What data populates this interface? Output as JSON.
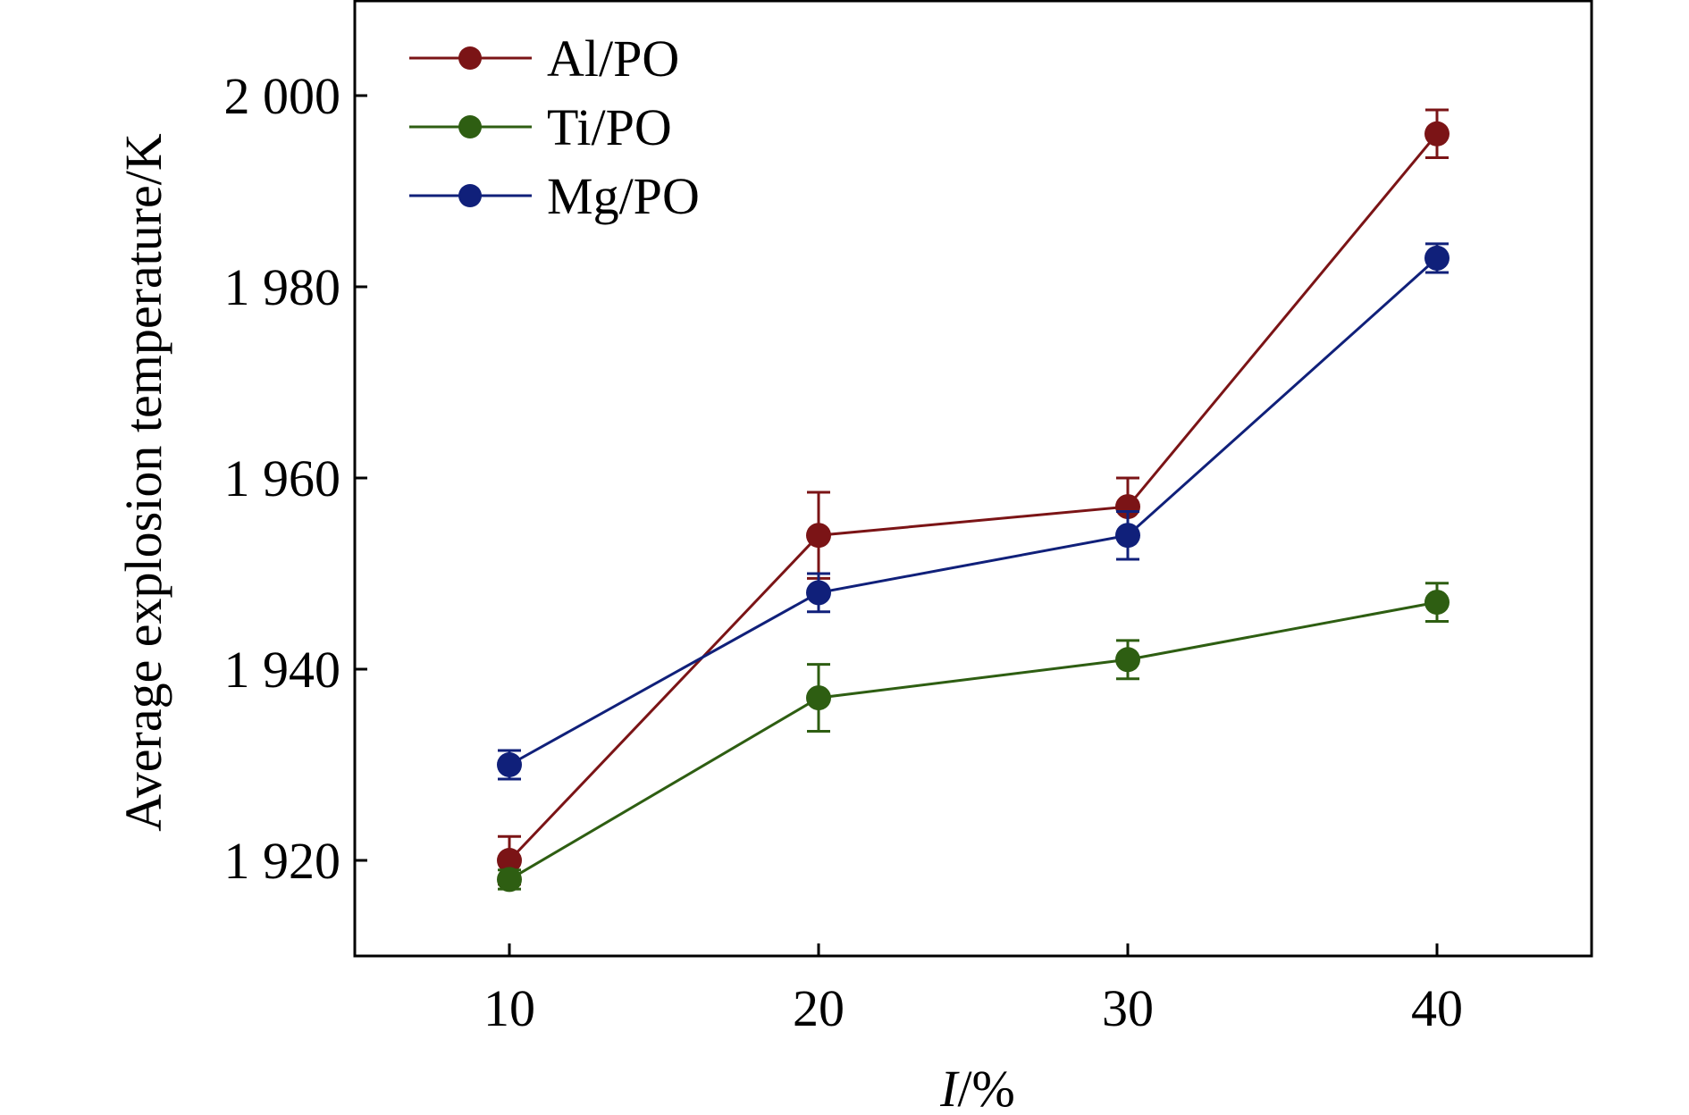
{
  "chart_data": {
    "type": "line",
    "title": "",
    "xlabel_italic": "I",
    "xlabel_rest": "/%",
    "ylabel": "Average explosion temperature/K",
    "x": [
      10,
      20,
      30,
      40
    ],
    "xlim": [
      5,
      45
    ],
    "ylim": [
      1910,
      2010
    ],
    "xticks": [
      10,
      20,
      30,
      40
    ],
    "xtick_labels": [
      "10",
      "20",
      "30",
      "40"
    ],
    "yticks": [
      1920,
      1940,
      1960,
      1980,
      2000
    ],
    "ytick_labels": [
      "1 920",
      "1 940",
      "1 960",
      "1 980",
      "2 000"
    ],
    "grid": false,
    "legend_position": "top-left",
    "series": [
      {
        "name": "Al/PO",
        "color": "#7b1416",
        "values": [
          1920,
          1954,
          1957,
          1996
        ],
        "errors": [
          2.5,
          4.5,
          3,
          2.5
        ]
      },
      {
        "name": "Ti/PO",
        "color": "#2e5e12",
        "values": [
          1918,
          1937,
          1941,
          1947
        ],
        "errors": [
          1,
          3.5,
          2,
          2
        ]
      },
      {
        "name": "Mg/PO",
        "color": "#10207a",
        "values": [
          1930,
          1948,
          1954,
          1983
        ],
        "errors": [
          1.5,
          2,
          2.5,
          1.5
        ]
      }
    ]
  }
}
